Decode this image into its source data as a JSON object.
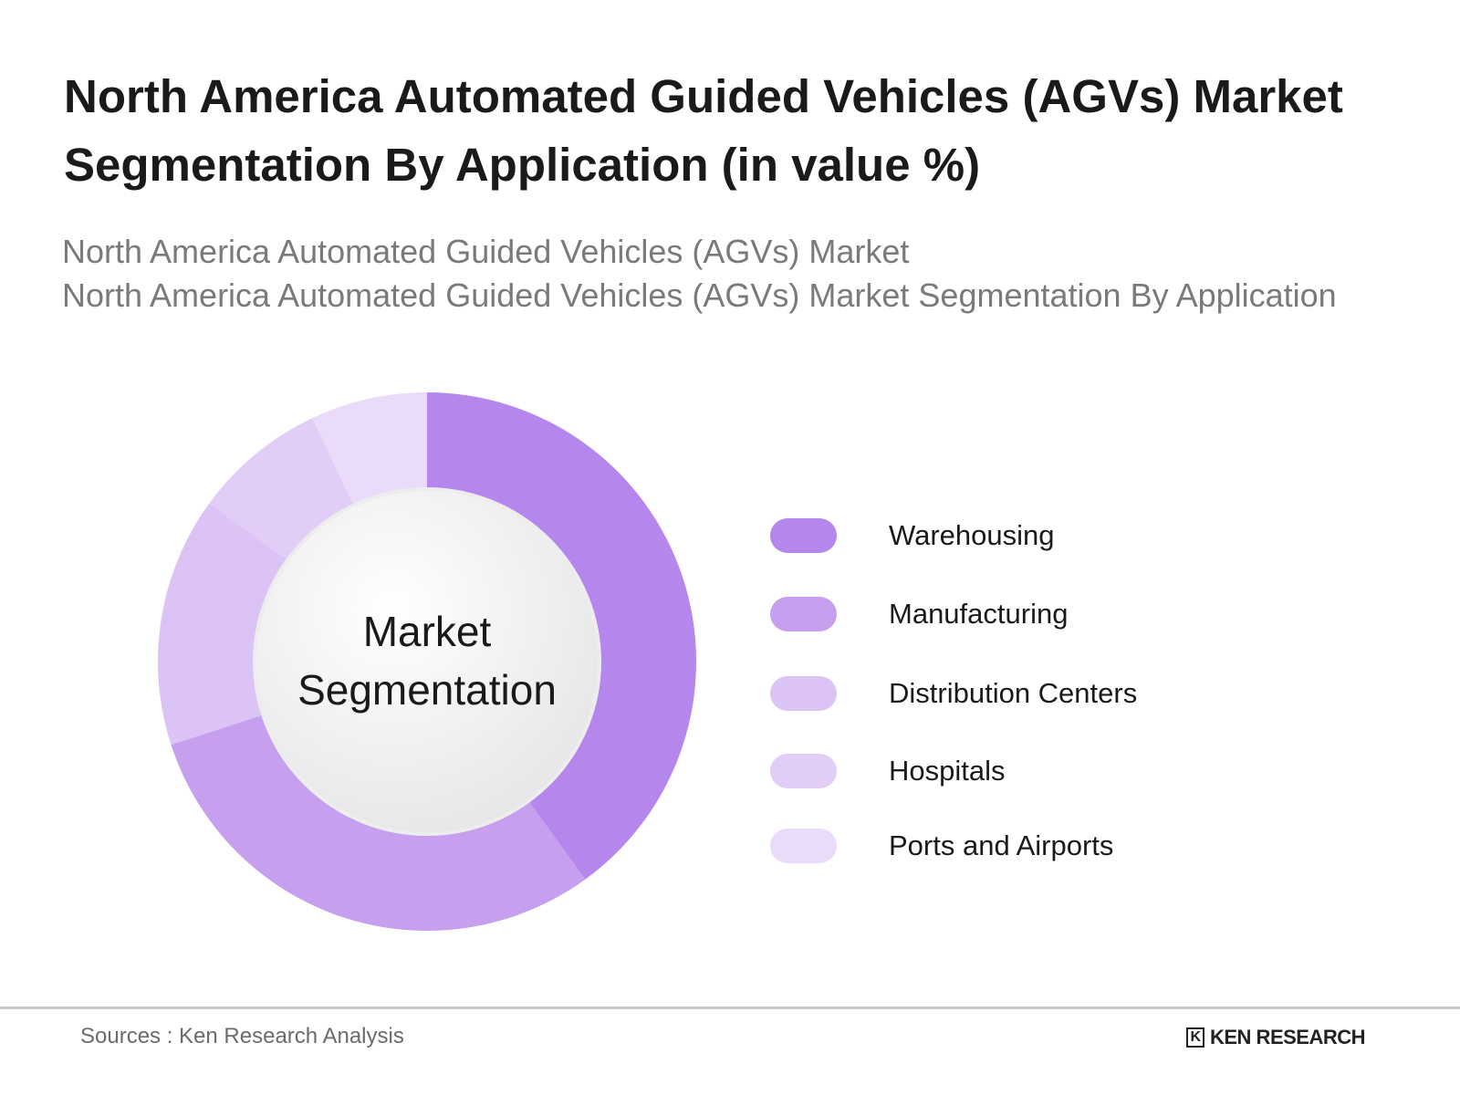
{
  "chart_data": {
    "type": "pie",
    "variant": "donut",
    "title": "North America Automated Guided Vehicles (AGVs) Market Segmentation By Application (in value %)",
    "subtitle_lines": [
      "North America Automated Guided Vehicles (AGVs) Market",
      "North America Automated Guided Vehicles (AGVs) Market Segmentation By Application"
    ],
    "center_label_lines": [
      "Market",
      "Segmentation"
    ],
    "categories": [
      "Warehousing",
      "Manufacturing",
      "Distribution Centers",
      "Hospitals",
      "Ports and Airports"
    ],
    "values": [
      40,
      30,
      15,
      8,
      7
    ],
    "unit": "%",
    "colors": [
      "#b586ec",
      "#c6a0ef",
      "#dbc3f5",
      "#e2cdf6",
      "#eadbfa"
    ],
    "legend_placement": "right"
  },
  "footer": {
    "source": "Sources : Ken Research Analysis",
    "logo_text": "KEN RESEARCH",
    "logo_mark": "K"
  }
}
